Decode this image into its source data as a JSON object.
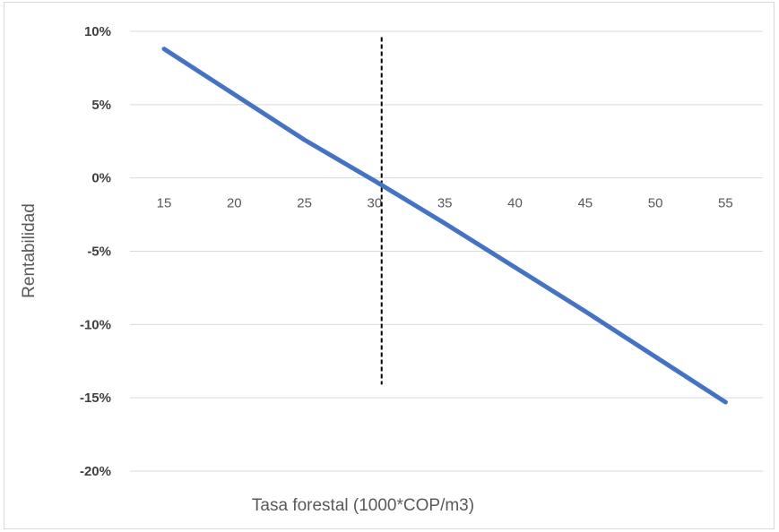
{
  "chart_data": {
    "type": "line",
    "title": "",
    "xlabel": "Tasa forestal (1000*COP/m3)",
    "ylabel": "Rentabilidad",
    "x": [
      15,
      20,
      25,
      30,
      35,
      40,
      45,
      50,
      55
    ],
    "x_tick_labels": [
      "15",
      "20",
      "25",
      "30",
      "35",
      "40",
      "45",
      "50",
      "55"
    ],
    "y_tick_labels": [
      "10%",
      "5%",
      "0%",
      "-5%",
      "-10%",
      "-15%",
      "-20%"
    ],
    "ylim": [
      -0.2,
      0.1
    ],
    "series": [
      {
        "values": [
          0.088,
          0.057,
          0.026,
          -0.002,
          -0.031,
          -0.061,
          -0.091,
          -0.122,
          -0.153
        ],
        "color": "#4472c4"
      }
    ],
    "reference_line": {
      "x": 30.5,
      "y_range": [
        -0.141,
        0.096
      ],
      "style": "dashed",
      "color": "#000000"
    },
    "grid": true,
    "legend": "none"
  }
}
